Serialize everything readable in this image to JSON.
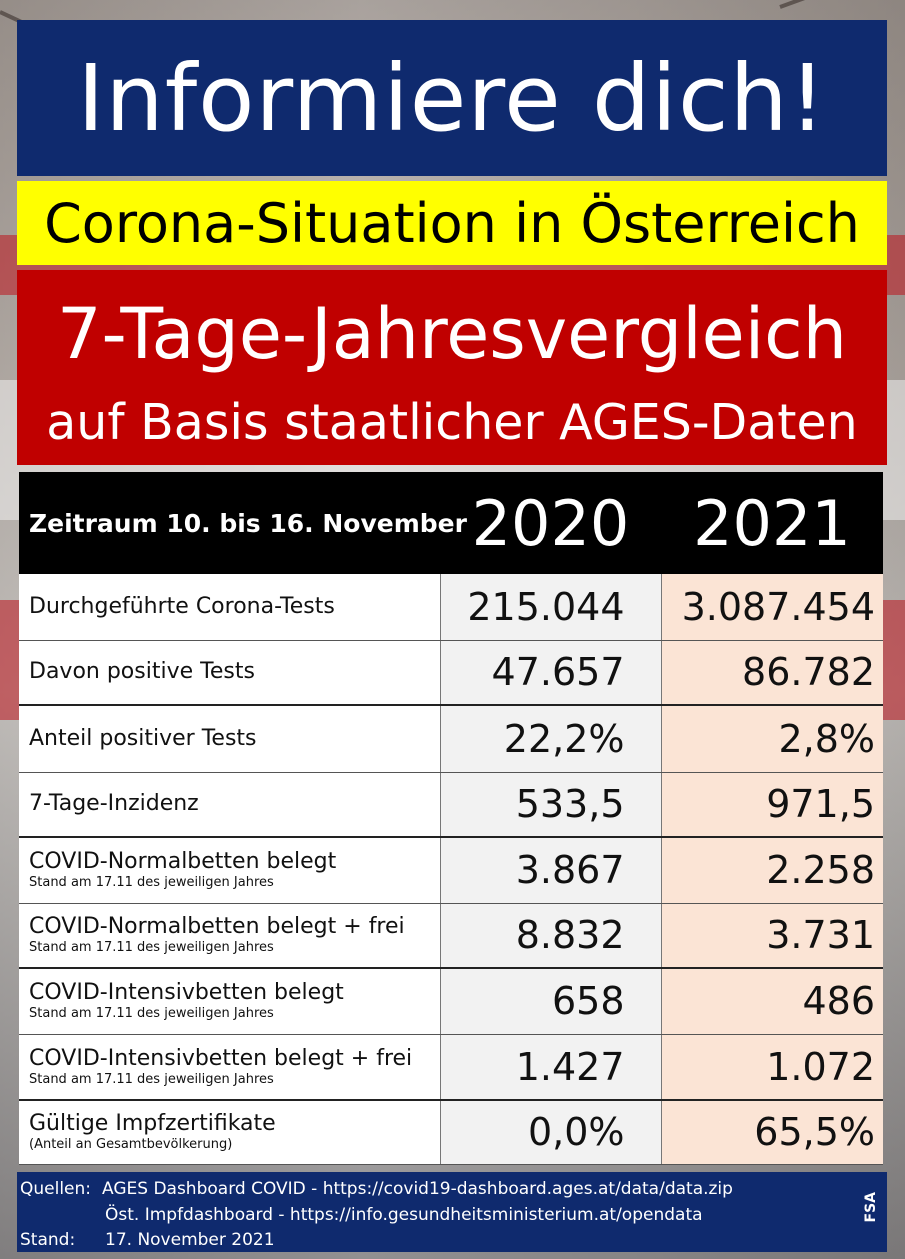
{
  "title": "Informiere dich!",
  "subtitle": "Corona-Situation in Österreich",
  "heading": "7-Tage-Jahresvergleich",
  "subheading": "auf Basis staatlicher AGES-Daten",
  "table": {
    "period_label": "Zeitraum 10. bis 16. November",
    "years": [
      "2020",
      "2021"
    ],
    "rows": [
      {
        "label": "Durchgeführte Corona-Tests",
        "note": "",
        "v2020": "215.044",
        "v2021": "3.087.454"
      },
      {
        "label": "Davon positive Tests",
        "note": "",
        "v2020": "47.657",
        "v2021": "86.782"
      },
      {
        "label": "Anteil positiver Tests",
        "note": "",
        "v2020": "22,2%",
        "v2021": "2,8%"
      },
      {
        "label": "7-Tage-Inzidenz",
        "note": "",
        "v2020": "533,5",
        "v2021": "971,5"
      },
      {
        "label": "COVID-Normalbetten belegt",
        "note": "Stand am 17.11 des jeweiligen Jahres",
        "v2020": "3.867",
        "v2021": "2.258"
      },
      {
        "label": "COVID-Normalbetten belegt + frei",
        "note": "Stand am 17.11 des jeweiligen Jahres",
        "v2020": "8.832",
        "v2021": "3.731"
      },
      {
        "label": "COVID-Intensivbetten belegt",
        "note": "Stand am 17.11 des jeweiligen Jahres",
        "v2020": "658",
        "v2021": "486"
      },
      {
        "label": "COVID-Intensivbetten belegt + frei",
        "note": "Stand am 17.11 des jeweiligen Jahres",
        "v2020": "1.427",
        "v2021": "1.072"
      },
      {
        "label": "Gültige Impfzertifikate",
        "note": "(Anteil an Gesamtbevölkerung)",
        "v2020": "0,0%",
        "v2021": "65,5%"
      }
    ]
  },
  "footer": {
    "sources_label": "Quellen:",
    "source_1": "AGES Dashboard COVID - https://covid19-dashboard.ages.at/data/data.zip",
    "source_2": "Öst. Impfdashboard - https://info.gesundheitsministerium.at/opendata",
    "stand_label": "Stand:",
    "stand_date": "17. November 2021",
    "author_mark": "FSA"
  },
  "colors": {
    "title_bg": "#0f2a6e",
    "subtitle_bg": "#ffff00",
    "heading_bg": "#c00000",
    "header_row_bg": "#000000",
    "col_2020_bg": "#f2f2f2",
    "col_2021_bg": "#fbe4d5"
  }
}
